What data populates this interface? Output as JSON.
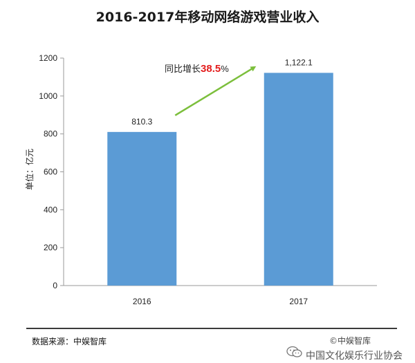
{
  "chart_data": {
    "type": "bar",
    "title": "2016-2017年移动网络游戏营业收入",
    "ylabel": "单位：亿元",
    "categories": [
      "2016",
      "2017"
    ],
    "values": [
      810.3,
      1122.1
    ],
    "value_labels": [
      "810.3",
      "1,122.1"
    ],
    "ylim": [
      0,
      1200
    ],
    "yticks": [
      "0",
      "200",
      "400",
      "600",
      "800",
      "1000",
      "1200"
    ],
    "grid": false,
    "bar_color": "#5b9bd5",
    "annotation": {
      "prefix": "同比增长",
      "highlight": "38.5",
      "suffix": "%",
      "highlight_color": "#e31c1c",
      "arrow_color": "#7cbf3c"
    }
  },
  "footer": {
    "source": "数据来源：中娱智库",
    "watermark": "©中娱智库",
    "org": "中国文化娱乐行业协会"
  }
}
